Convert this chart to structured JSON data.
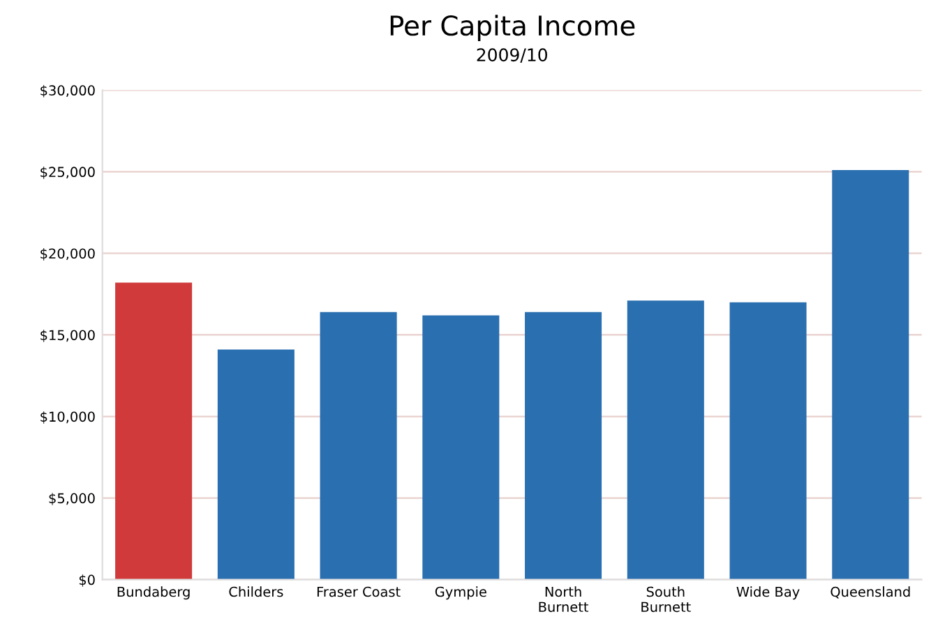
{
  "chart_data": {
    "type": "bar",
    "title": "Per Capita Income",
    "subtitle": "2009/10",
    "categories": [
      "Bundaberg",
      "Childers",
      "Fraser Coast",
      "Gympie",
      "North\nBurnett",
      "South\nBurnett",
      "Wide Bay",
      "Queensland"
    ],
    "values": [
      18200,
      14100,
      16400,
      16200,
      16400,
      17100,
      17000,
      25100
    ],
    "colors": [
      "#d03a3a",
      "#2a6fb0",
      "#2a6fb0",
      "#2a6fb0",
      "#2a6fb0",
      "#2a6fb0",
      "#2a6fb0",
      "#2a6fb0"
    ],
    "ylim": [
      0,
      30000
    ],
    "yticks": [
      {
        "value": 0,
        "label": "$0"
      },
      {
        "value": 5000,
        "label": "$5,000"
      },
      {
        "value": 10000,
        "label": "$10,000"
      },
      {
        "value": 15000,
        "label": "$15,000"
      },
      {
        "value": 20000,
        "label": "$20,000"
      },
      {
        "value": 25000,
        "label": "$25,000"
      },
      {
        "value": 30000,
        "label": "$30,000"
      }
    ],
    "grid": "y"
  }
}
